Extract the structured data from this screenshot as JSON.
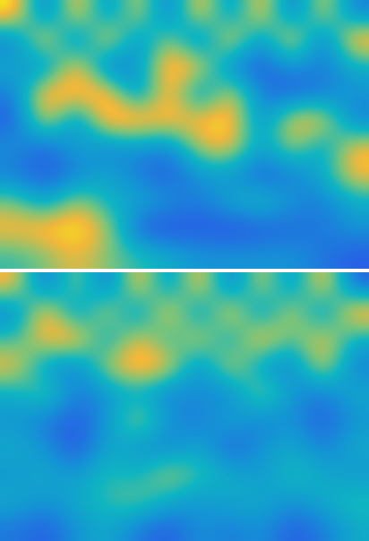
{
  "chart_data": [
    {
      "type": "heatmap",
      "tick_labels": false,
      "clim": [
        0,
        1
      ],
      "cells": [
        [
          1,
          0.2,
          1,
          0.3,
          0.9,
          0.2,
          1,
          0.3,
          1,
          0.2,
          0.9,
          0.3
        ],
        [
          0.3,
          1,
          0.2,
          1,
          0.3,
          0.8,
          0.2,
          1,
          0.3,
          1,
          0.2,
          1
        ],
        [
          0.5,
          0.3,
          1,
          0.2,
          0.4,
          1,
          0.9,
          0.3,
          0.2,
          0.4,
          0.3,
          0.5
        ],
        [
          0.3,
          1,
          0.9,
          1,
          0.3,
          1,
          0.3,
          0.9,
          0.3,
          0.2,
          0.3,
          0.4
        ],
        [
          0.2,
          0.9,
          0.3,
          1,
          1,
          0.9,
          0.9,
          1,
          0.3,
          0.9,
          0.9,
          0.3
        ],
        [
          0.4,
          0.2,
          0.5,
          0.3,
          0.4,
          0.3,
          0.8,
          0.9,
          0.4,
          0.8,
          0.4,
          0.9
        ],
        [
          0.3,
          0.2,
          0.3,
          0.5,
          0.3,
          0.2,
          0.4,
          0.4,
          0.2,
          0.3,
          0.5,
          0.9
        ],
        [
          0.7,
          0.4,
          0.8,
          0.5,
          0.5,
          0.4,
          0.3,
          0.5,
          0.6,
          0.4,
          0.3,
          0.5
        ],
        [
          0.9,
          0.95,
          1,
          0.8,
          0.2,
          0.15,
          0.2,
          0.15,
          0.2,
          0.25,
          0.3,
          0.4
        ],
        [
          0.6,
          0.7,
          0.85,
          0.7,
          0.6,
          0.5,
          0.4,
          0.4,
          0.4,
          0.4,
          0.3,
          0.2
        ]
      ]
    },
    {
      "type": "heatmap",
      "tick_labels": false,
      "clim": [
        0,
        1
      ],
      "cells": [
        [
          0.9,
          0.2,
          0.8,
          0.2,
          1,
          0.3,
          1,
          0.2,
          0.9,
          0.3,
          1,
          0.2
        ],
        [
          0.3,
          1,
          0.3,
          0.9,
          0.3,
          1,
          0.3,
          1,
          0.3,
          0.9,
          0.3,
          1
        ],
        [
          0.6,
          0.9,
          1,
          0.4,
          0.9,
          0.5,
          0.9,
          0.4,
          1,
          0.6,
          0.9,
          0.5
        ],
        [
          0.9,
          0.4,
          0.3,
          0.8,
          1,
          0.9,
          0.3,
          0.9,
          0.4,
          0.3,
          0.9,
          0.3
        ],
        [
          0.5,
          0.7,
          0.3,
          0.4,
          0.5,
          0.3,
          0.4,
          0.3,
          0.8,
          0.4,
          0.3,
          0.5
        ],
        [
          0.4,
          0.3,
          0.2,
          0.4,
          0.8,
          0.4,
          0.3,
          0.5,
          0.3,
          0.4,
          0.2,
          0.4
        ],
        [
          0.5,
          0.4,
          0.15,
          0.5,
          0.4,
          0.3,
          0.5,
          0.2,
          0.4,
          0.5,
          0.3,
          0.5
        ],
        [
          0.4,
          0.5,
          0.4,
          0.6,
          0.5,
          0.8,
          0.6,
          0.5,
          0.4,
          0.6,
          0.5,
          0.4
        ],
        [
          0.5,
          0.4,
          0.5,
          0.6,
          0.7,
          0.5,
          0.4,
          0.5,
          0.5,
          0.4,
          0.5,
          0.6
        ],
        [
          0.3,
          0.2,
          0.4,
          0.5,
          0.3,
          0.2,
          0.4,
          0.3,
          0.4,
          0.2,
          0.3,
          0.5
        ]
      ]
    }
  ]
}
